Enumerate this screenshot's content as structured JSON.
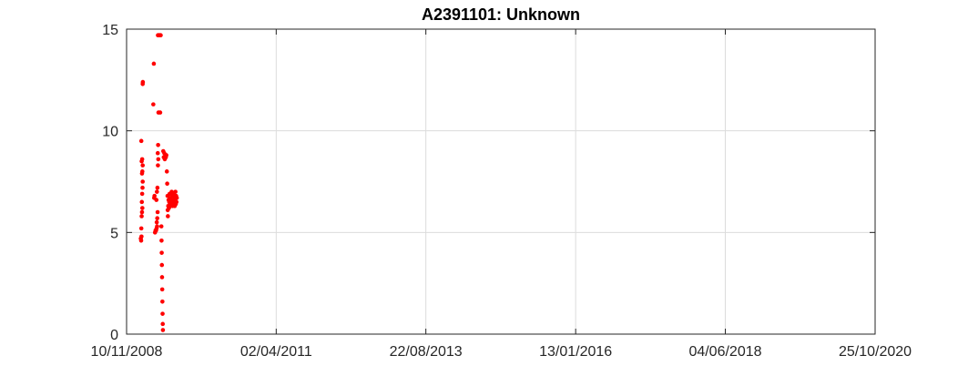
{
  "chart_data": {
    "type": "scatter",
    "title": "A2391101: Unknown",
    "xlabel": "",
    "ylabel": "",
    "xlim": [
      "2008-11-10",
      "2020-10-25"
    ],
    "ylim": [
      0,
      15
    ],
    "xticks": [
      "10/11/2008",
      "02/04/2011",
      "22/08/2013",
      "13/01/2016",
      "04/06/2018",
      "25/10/2020"
    ],
    "yticks": [
      0,
      5,
      10,
      15
    ],
    "grid": true,
    "marker_color": "#ff0000",
    "series": [
      {
        "points": [
          [
            "2009-02-01",
            4.7
          ],
          [
            "2009-02-03",
            4.6
          ],
          [
            "2009-02-05",
            4.8
          ],
          [
            "2009-02-04",
            5.2
          ],
          [
            "2009-02-06",
            5.8
          ],
          [
            "2009-02-08",
            6.0
          ],
          [
            "2009-02-10",
            6.2
          ],
          [
            "2009-02-07",
            6.5
          ],
          [
            "2009-02-09",
            6.9
          ],
          [
            "2009-02-11",
            7.2
          ],
          [
            "2009-02-12",
            7.5
          ],
          [
            "2009-02-08",
            7.9
          ],
          [
            "2009-02-10",
            8.0
          ],
          [
            "2009-02-12",
            8.3
          ],
          [
            "2009-02-06",
            8.5
          ],
          [
            "2009-02-09",
            8.6
          ],
          [
            "2009-02-04",
            9.5
          ],
          [
            "2009-02-12",
            12.3
          ],
          [
            "2009-02-13",
            12.4
          ],
          [
            "2009-04-15",
            11.3
          ],
          [
            "2009-04-18",
            13.3
          ],
          [
            "2009-04-20",
            6.7
          ],
          [
            "2009-04-22",
            6.8
          ],
          [
            "2009-04-25",
            5.0
          ],
          [
            "2009-04-28",
            5.1
          ],
          [
            "2009-05-01",
            5.1
          ],
          [
            "2009-05-04",
            5.2
          ],
          [
            "2009-05-07",
            5.3
          ],
          [
            "2009-05-05",
            5.5
          ],
          [
            "2009-05-08",
            5.7
          ],
          [
            "2009-05-10",
            6.0
          ],
          [
            "2009-05-03",
            6.6
          ],
          [
            "2009-05-06",
            7.0
          ],
          [
            "2009-05-09",
            7.2
          ],
          [
            "2009-05-12",
            8.3
          ],
          [
            "2009-05-14",
            8.6
          ],
          [
            "2009-05-11",
            8.9
          ],
          [
            "2009-05-13",
            9.3
          ],
          [
            "2009-05-15",
            10.9
          ],
          [
            "2009-05-12",
            14.7
          ],
          [
            "2009-05-16",
            14.7
          ],
          [
            "2009-05-20",
            14.7
          ],
          [
            "2009-05-24",
            14.7
          ],
          [
            "2009-05-28",
            14.7
          ],
          [
            "2009-05-25",
            10.9
          ],
          [
            "2009-06-01",
            5.3
          ],
          [
            "2009-06-02",
            4.6
          ],
          [
            "2009-06-03",
            4.0
          ],
          [
            "2009-06-04",
            3.4
          ],
          [
            "2009-06-05",
            2.8
          ],
          [
            "2009-06-06",
            2.2
          ],
          [
            "2009-06-07",
            1.6
          ],
          [
            "2009-06-08",
            1.0
          ],
          [
            "2009-06-09",
            0.5
          ],
          [
            "2009-06-10",
            0.2
          ],
          [
            "2009-06-12",
            9.0
          ],
          [
            "2009-06-15",
            8.7
          ],
          [
            "2009-06-18",
            8.9
          ],
          [
            "2009-06-21",
            8.6
          ],
          [
            "2009-06-24",
            8.8
          ],
          [
            "2009-06-27",
            8.7
          ],
          [
            "2009-06-30",
            8.8
          ],
          [
            "2009-07-03",
            8.0
          ],
          [
            "2009-07-05",
            7.4
          ],
          [
            "2009-07-07",
            6.8
          ],
          [
            "2009-07-08",
            6.1
          ],
          [
            "2009-07-09",
            5.8
          ],
          [
            "2009-07-11",
            6.3
          ],
          [
            "2009-07-13",
            6.6
          ],
          [
            "2009-07-15",
            6.2
          ],
          [
            "2009-07-17",
            6.5
          ],
          [
            "2009-07-19",
            6.9
          ],
          [
            "2009-07-21",
            6.4
          ],
          [
            "2009-07-23",
            6.7
          ],
          [
            "2009-07-25",
            6.3
          ],
          [
            "2009-07-27",
            6.6
          ],
          [
            "2009-07-29",
            6.4
          ],
          [
            "2009-07-31",
            7.0
          ],
          [
            "2009-08-02",
            6.5
          ],
          [
            "2009-08-04",
            6.8
          ],
          [
            "2009-08-06",
            6.3
          ],
          [
            "2009-08-08",
            6.6
          ],
          [
            "2009-08-10",
            6.4
          ],
          [
            "2009-08-12",
            6.9
          ],
          [
            "2009-08-14",
            6.5
          ],
          [
            "2009-08-16",
            6.7
          ],
          [
            "2009-08-18",
            6.3
          ],
          [
            "2009-08-20",
            6.6
          ],
          [
            "2009-08-22",
            7.0
          ],
          [
            "2009-08-24",
            6.4
          ],
          [
            "2009-08-26",
            6.8
          ],
          [
            "2009-08-28",
            6.5
          ],
          [
            "2009-08-30",
            6.7
          ]
        ]
      }
    ]
  }
}
